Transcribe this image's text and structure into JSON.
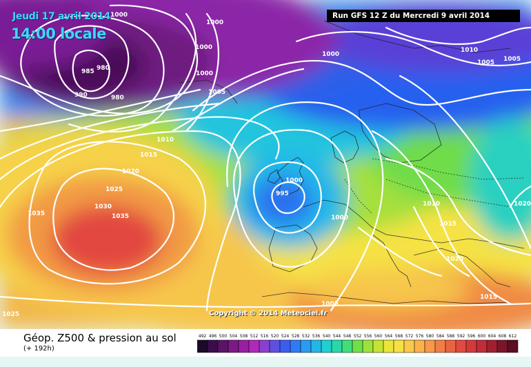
{
  "header": {
    "date_label": "Jeudi 17 avril 2014",
    "time_label": "14:00 locale",
    "run_label": "Run GFS 12 Z du Mercredi 9 avril 2014"
  },
  "copyright": "Copyright © 2014 Meteociel.fr",
  "product": {
    "title": "Géop. Z500 & pression au sol",
    "subtitle": "(+ 192h)"
  },
  "scale": {
    "values": [
      "492",
      "496",
      "500",
      "504",
      "508",
      "512",
      "516",
      "520",
      "524",
      "528",
      "532",
      "536",
      "540",
      "544",
      "548",
      "552",
      "556",
      "560",
      "564",
      "568",
      "572",
      "576",
      "580",
      "584",
      "588",
      "592",
      "596",
      "600",
      "604",
      "608",
      "612"
    ],
    "colors": [
      "#1c0a2a",
      "#3b0d4a",
      "#5a1466",
      "#7a1a86",
      "#981fa2",
      "#b02ab8",
      "#8a3fd0",
      "#5e4fe0",
      "#3d5cf0",
      "#2d7cf5",
      "#2a9bf2",
      "#22b7e6",
      "#1fd0d0",
      "#28d8a8",
      "#3fde7a",
      "#6ee04a",
      "#9be23a",
      "#c6e334",
      "#e9e63a",
      "#f7e045",
      "#fbc94a",
      "#fbb24a",
      "#f99848",
      "#f27e46",
      "#ea6443",
      "#e14a41",
      "#d23a3c",
      "#c02c37",
      "#a21f30",
      "#7c152a",
      "#5a0f22"
    ]
  },
  "isobars": [
    "1000",
    "1000",
    "1000",
    "1000",
    "985",
    "980",
    "990",
    "980",
    "1005",
    "1000",
    "1010",
    "1005",
    "1005",
    "1010",
    "1015",
    "1020",
    "1025",
    "1030",
    "1035",
    "1035",
    "1000",
    "995",
    "1000",
    "1010",
    "1015",
    "1020",
    "1020",
    "1015",
    "1005",
    "1025"
  ]
}
